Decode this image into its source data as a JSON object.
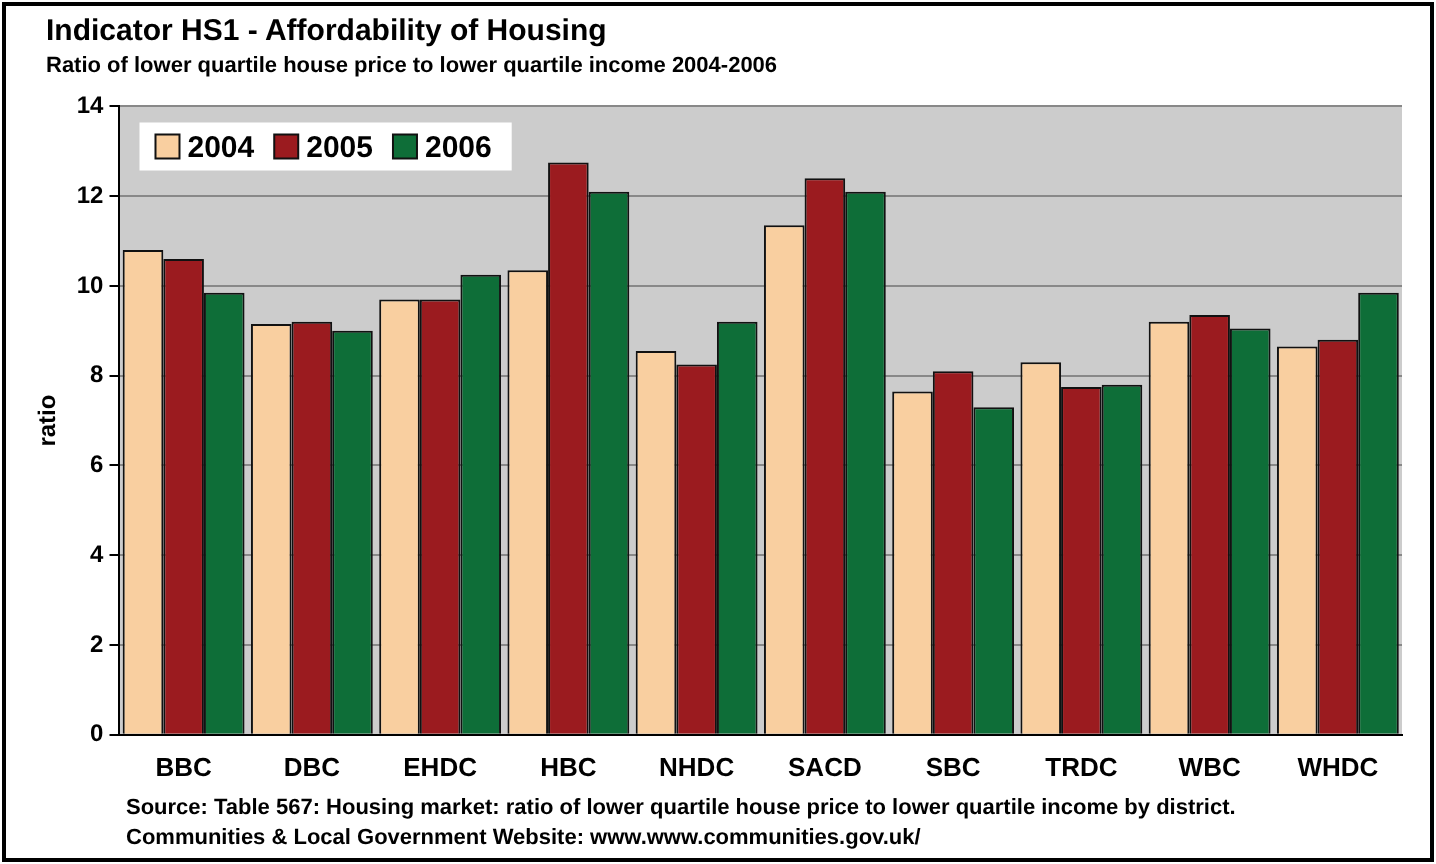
{
  "chart_data": {
    "type": "bar",
    "title": "Indicator HS1 - Affordability of Housing",
    "subtitle": "Ratio of lower quartile house price to lower quartile income 2004-2006",
    "ylabel": "ratio",
    "categories": [
      "BBC",
      "DBC",
      "EHDC",
      "HBC",
      "NHDC",
      "SACD",
      "SBC",
      "TRDC",
      "WBC",
      "WHDC"
    ],
    "series": [
      {
        "name": "2004",
        "color": "#f9cfa0",
        "values": [
          10.8,
          9.15,
          9.7,
          10.35,
          8.55,
          11.35,
          7.65,
          8.3,
          9.2,
          8.65
        ]
      },
      {
        "name": "2005",
        "color": "#9b1b1f",
        "values": [
          10.6,
          9.2,
          9.7,
          12.75,
          8.25,
          12.4,
          8.1,
          7.75,
          9.35,
          8.8
        ]
      },
      {
        "name": "2006",
        "color": "#0e6e38",
        "values": [
          9.85,
          9.0,
          10.25,
          12.1,
          9.2,
          12.1,
          7.3,
          7.8,
          9.05,
          9.85
        ]
      }
    ],
    "ylim": [
      0,
      14
    ],
    "yticks": [
      0,
      2,
      4,
      6,
      8,
      10,
      12,
      14
    ],
    "grid": "y",
    "legend": "top left",
    "annotations": [
      "Source: Table 567: Housing market: ratio of lower quartile house price to lower quartile income by district.",
      "Communities & Local Government Website: www.www.communities.gov.uk/"
    ]
  }
}
